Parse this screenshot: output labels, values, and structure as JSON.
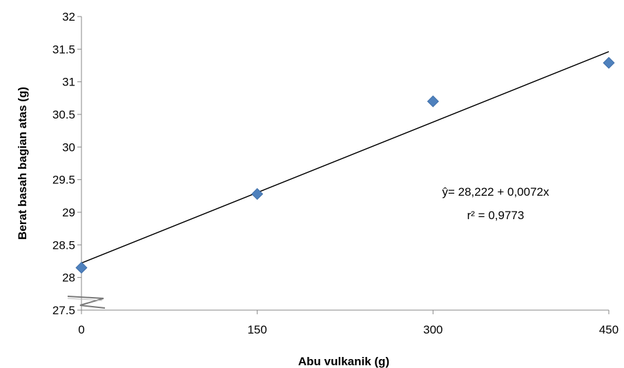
{
  "chart_data": {
    "type": "scatter",
    "xlabel": "Abu vulkanik (g)",
    "ylabel": "Berat basah bagian atas (g)",
    "xlim": [
      0,
      450
    ],
    "ylim": [
      27.5,
      32
    ],
    "x_ticks": [
      0,
      150,
      300,
      450
    ],
    "x_tick_labels": [
      "0",
      "150",
      "300",
      "450"
    ],
    "y_ticks": [
      27.5,
      28,
      28.5,
      29,
      29.5,
      30,
      30.5,
      31,
      31.5,
      32
    ],
    "y_tick_labels": [
      "27.5",
      "28",
      "28.5",
      "29",
      "29.5",
      "30",
      "30.5",
      "31",
      "31.5",
      "32"
    ],
    "grid": false,
    "points": [
      {
        "x": 0,
        "y": 28.15
      },
      {
        "x": 150,
        "y": 29.28
      },
      {
        "x": 300,
        "y": 30.7
      },
      {
        "x": 450,
        "y": 31.29
      }
    ],
    "trendline": {
      "intercept": 28.222,
      "slope": 0.0072
    },
    "annotations": [
      "ŷ= 28,222 + 0,0072x",
      "r² = 0,9773"
    ],
    "colors": {
      "marker": "#4F81BD",
      "trendline": "#000000",
      "axis": "#868686"
    },
    "axis_break": "y-axis-break-icon"
  }
}
